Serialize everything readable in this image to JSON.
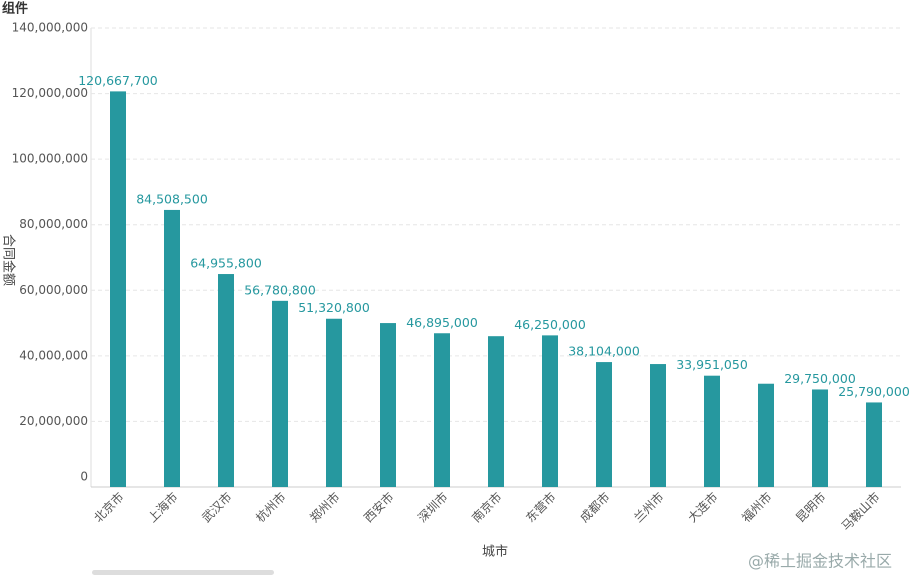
{
  "chart_data": {
    "type": "bar",
    "title": "组件",
    "x_label": "城市",
    "y_label": "合同金额",
    "categories": [
      "北京市",
      "上海市",
      "武汉市",
      "杭州市",
      "郑州市",
      "西安市",
      "深圳市",
      "南京市",
      "东营市",
      "成都市",
      "兰州市",
      "大连市",
      "福州市",
      "昆明市",
      "马鞍山市"
    ],
    "values": [
      120667700,
      84508500,
      64955800,
      56780800,
      51320800,
      50000000,
      46895000,
      46000000,
      46250000,
      38104000,
      37500000,
      33951050,
      31500000,
      29750000,
      25790000
    ],
    "value_labels": [
      "120,667,700",
      "84,508,500",
      "64,955,800",
      "56,780,800",
      "51,320,800",
      null,
      "46,895,000",
      null,
      "46,250,000",
      "38,104,000",
      null,
      "33,951,050",
      null,
      "29,750,000",
      "25,790,000"
    ],
    "color": "#26989f",
    "ylim": [
      0,
      140000000
    ],
    "yticks": [
      0,
      {
        "value": 20000000,
        "label": "20,000,000"
      },
      {
        "value": 40000000,
        "label": "40,000,000"
      },
      {
        "value": 60000000,
        "label": "60,000,000"
      },
      {
        "value": 80000000,
        "label": "80,000,000"
      },
      {
        "value": 100000000,
        "label": "100,000,000"
      },
      {
        "value": 120000000,
        "label": "120,000,000"
      },
      {
        "value": 140000000,
        "label": "140,000,000"
      }
    ],
    "grid": true,
    "watermark": "@稀土掘金技术社区"
  }
}
